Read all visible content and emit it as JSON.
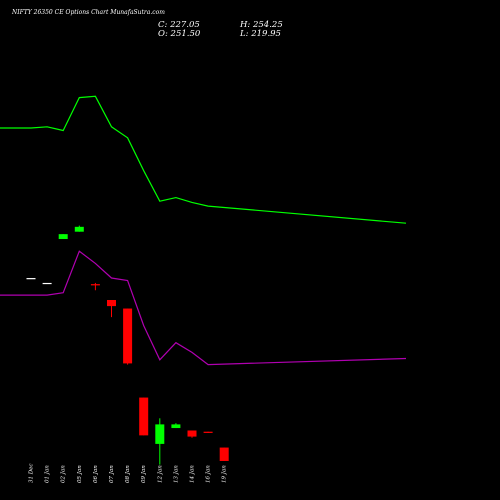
{
  "title": "NIFTY 26350  CE Options  Chart MunafaSutra.com",
  "ohlc": {
    "close_label": "C:",
    "close": "227.05",
    "high_label": "H:",
    "high": "254.25",
    "open_label": "O:",
    "open": "251.50",
    "low_label": "L:",
    "low": "219.95"
  },
  "colors": {
    "background": "#000000",
    "up": "#00ff00",
    "down": "#ff0000",
    "flat": "#ffffff",
    "upper_line": "#00ff00",
    "lower_line": "#b000b0",
    "text": "#ffffff"
  },
  "chart_data": {
    "type": "candlestick",
    "categories": [
      "31 Dec",
      "01 Jan",
      "02 Jan",
      "05 Jan",
      "06 Jan",
      "07 Jan",
      "08 Jan",
      "09 Jan",
      "12 Jan",
      "13 Jan",
      "14 Jan",
      "16 Jan",
      "19 Jan"
    ],
    "candles": [
      {
        "open": 332,
        "high": 332,
        "low": 332,
        "close": 332
      },
      {
        "open": 328,
        "high": 328,
        "low": 328,
        "close": 328
      },
      {
        "open": 364,
        "high": 368,
        "low": 364,
        "close": 368
      },
      {
        "open": 370,
        "high": 375,
        "low": 370,
        "close": 374
      },
      {
        "open": 327,
        "high": 328,
        "low": 322,
        "close": 326
      },
      {
        "open": 314,
        "high": 314,
        "low": 300,
        "close": 309
      },
      {
        "open": 307,
        "high": 307,
        "low": 261,
        "close": 262
      },
      {
        "open": 234,
        "high": 234,
        "low": 203,
        "close": 203
      },
      {
        "open": 196,
        "high": 217,
        "low": 179,
        "close": 212
      },
      {
        "open": 209,
        "high": 213,
        "low": 209,
        "close": 212
      },
      {
        "open": 207,
        "high": 207,
        "low": 201,
        "close": 202
      },
      {
        "open": 206,
        "high": 206,
        "low": 205,
        "close": 205
      },
      {
        "open": 193,
        "high": 193,
        "low": 182,
        "close": 182
      }
    ],
    "upper_band": [
      455,
      456,
      453,
      480,
      481,
      456,
      447,
      420,
      395,
      398,
      394,
      391,
      377
    ],
    "lower_band": [
      318,
      318,
      320,
      354,
      344,
      332,
      330,
      293,
      265,
      279,
      271,
      261,
      266
    ],
    "ylim": [
      150,
      560
    ]
  }
}
